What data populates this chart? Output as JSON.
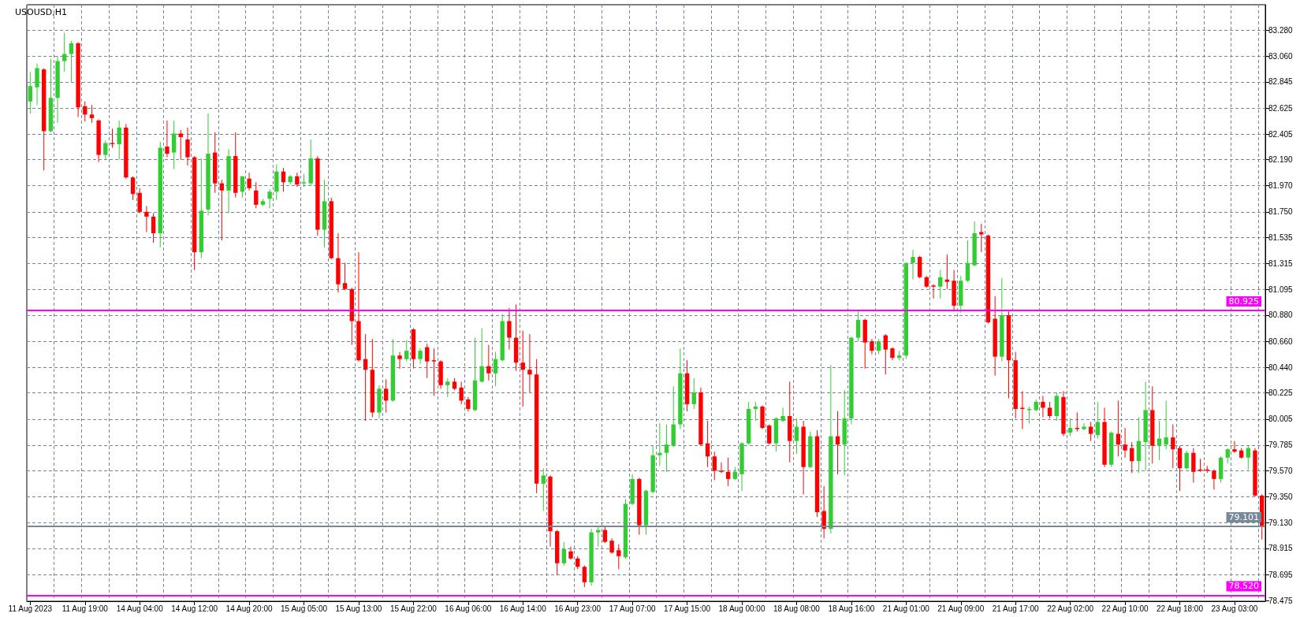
{
  "chart_data": {
    "type": "candlestick",
    "title": "USOUSD,H1",
    "categories": [
      "11 Aug 2023",
      null,
      null,
      null,
      null,
      null,
      null,
      null,
      "11 Aug 19:00",
      null,
      null,
      null,
      null,
      null,
      null,
      null,
      "14 Aug 04:00",
      null,
      null,
      null,
      null,
      null,
      null,
      null,
      "14 Aug 12:00",
      null,
      null,
      null,
      null,
      null,
      null,
      null,
      "14 Aug 20:00",
      null,
      null,
      null,
      null,
      null,
      null,
      null,
      "15 Aug 05:00",
      null,
      null,
      null,
      null,
      null,
      null,
      null,
      "15 Aug 13:00",
      null,
      null,
      null,
      null,
      null,
      null,
      null,
      "15 Aug 22:00",
      null,
      null,
      null,
      null,
      null,
      null,
      null,
      "16 Aug 06:00",
      null,
      null,
      null,
      null,
      null,
      null,
      null,
      "16 Aug 14:00",
      null,
      null,
      null,
      null,
      null,
      null,
      null,
      "16 Aug 23:00",
      null,
      null,
      null,
      null,
      null,
      null,
      null,
      "17 Aug 07:00",
      null,
      null,
      null,
      null,
      null,
      null,
      null,
      "17 Aug 15:00",
      null,
      null,
      null,
      null,
      null,
      null,
      null,
      "18 Aug 00:00",
      null,
      null,
      null,
      null,
      null,
      null,
      null,
      "18 Aug 08:00",
      null,
      null,
      null,
      null,
      null,
      null,
      null,
      "18 Aug 16:00",
      null,
      null,
      null,
      null,
      null,
      null,
      null,
      "21 Aug 01:00",
      null,
      null,
      null,
      null,
      null,
      null,
      null,
      "21 Aug 09:00",
      null,
      null,
      null,
      null,
      null,
      null,
      null,
      "21 Aug 17:00",
      null,
      null,
      null,
      null,
      null,
      null,
      null,
      "22 Aug 02:00",
      null,
      null,
      null,
      null,
      null,
      null,
      null,
      "22 Aug 10:00",
      null,
      null,
      null,
      null,
      null,
      null,
      null,
      "22 Aug 18:00",
      null,
      null,
      null,
      null,
      null,
      null,
      null,
      "23 Aug 03:00",
      null,
      null,
      null,
      null
    ],
    "ohlc": [
      [
        82.68,
        82.93,
        82.58,
        82.81
      ],
      [
        82.8,
        83.0,
        82.65,
        82.96
      ],
      [
        82.95,
        82.96,
        82.1,
        82.43
      ],
      [
        82.43,
        83.04,
        82.42,
        82.71
      ],
      [
        82.71,
        83.06,
        82.5,
        83.02
      ],
      [
        83.02,
        83.26,
        82.93,
        83.08
      ],
      [
        83.08,
        83.19,
        82.84,
        83.17
      ],
      [
        83.17,
        83.18,
        82.55,
        82.63
      ],
      [
        82.64,
        82.68,
        82.51,
        82.57
      ],
      [
        82.57,
        82.65,
        82.5,
        82.54
      ],
      [
        82.52,
        82.53,
        82.17,
        82.23
      ],
      [
        82.23,
        82.35,
        82.19,
        82.33
      ],
      [
        82.33,
        82.45,
        82.29,
        82.32
      ],
      [
        82.32,
        82.52,
        82.19,
        82.46
      ],
      [
        82.46,
        82.49,
        82.03,
        82.04
      ],
      [
        82.04,
        82.05,
        81.85,
        81.9
      ],
      [
        81.91,
        81.95,
        81.74,
        81.75
      ],
      [
        81.75,
        81.8,
        81.58,
        81.71
      ],
      [
        81.71,
        81.74,
        81.49,
        81.57
      ],
      [
        81.57,
        82.34,
        81.45,
        82.29
      ],
      [
        82.3,
        82.52,
        82.21,
        82.24
      ],
      [
        82.25,
        82.52,
        82.11,
        82.41
      ],
      [
        82.41,
        82.44,
        82.19,
        82.38
      ],
      [
        82.36,
        82.46,
        82.14,
        82.21
      ],
      [
        82.21,
        82.22,
        81.26,
        81.41
      ],
      [
        81.41,
        82.2,
        81.36,
        81.76
      ],
      [
        81.77,
        82.58,
        81.72,
        82.24
      ],
      [
        82.25,
        82.42,
        81.91,
        81.99
      ],
      [
        81.99,
        82.02,
        81.51,
        81.93
      ],
      [
        81.93,
        82.28,
        81.74,
        82.22
      ],
      [
        82.22,
        82.42,
        81.87,
        81.91
      ],
      [
        81.92,
        82.05,
        81.87,
        82.05
      ],
      [
        82.03,
        82.08,
        81.93,
        81.95
      ],
      [
        81.93,
        82.0,
        81.78,
        81.81
      ],
      [
        81.81,
        81.86,
        81.8,
        81.84
      ],
      [
        81.86,
        81.94,
        81.78,
        81.92
      ],
      [
        81.92,
        82.15,
        81.85,
        82.09
      ],
      [
        82.09,
        82.12,
        81.92,
        82.0
      ],
      [
        82.0,
        82.06,
        81.98,
        82.05
      ],
      [
        82.05,
        82.08,
        81.96,
        81.98
      ],
      [
        81.99,
        82.07,
        81.96,
        82.0
      ],
      [
        81.99,
        82.36,
        81.97,
        82.2
      ],
      [
        82.2,
        82.22,
        81.55,
        81.6
      ],
      [
        81.6,
        82.02,
        81.45,
        81.84
      ],
      [
        81.84,
        81.87,
        81.35,
        81.36
      ],
      [
        81.36,
        81.57,
        81.07,
        81.14
      ],
      [
        81.15,
        81.32,
        81.09,
        81.1
      ],
      [
        81.1,
        81.11,
        80.63,
        80.83
      ],
      [
        80.83,
        81.41,
        80.49,
        80.5
      ],
      [
        80.51,
        80.72,
        79.99,
        80.42
      ],
      [
        80.42,
        80.68,
        80.02,
        80.06
      ],
      [
        80.06,
        80.29,
        80.01,
        80.26
      ],
      [
        80.26,
        80.34,
        80.06,
        80.16
      ],
      [
        80.16,
        80.68,
        80.15,
        80.54
      ],
      [
        80.54,
        80.57,
        80.43,
        80.51
      ],
      [
        80.51,
        80.67,
        80.49,
        80.58
      ],
      [
        80.76,
        80.77,
        80.43,
        80.51
      ],
      [
        80.51,
        80.6,
        80.47,
        80.58
      ],
      [
        80.61,
        80.64,
        80.35,
        80.49
      ],
      [
        80.5,
        80.6,
        80.2,
        80.49
      ],
      [
        80.49,
        80.5,
        80.26,
        80.29
      ],
      [
        80.29,
        80.35,
        80.19,
        80.32
      ],
      [
        80.32,
        80.35,
        80.25,
        80.26
      ],
      [
        80.27,
        80.32,
        80.13,
        80.16
      ],
      [
        80.17,
        80.19,
        80.07,
        80.09
      ],
      [
        80.08,
        80.69,
        80.07,
        80.33
      ],
      [
        80.32,
        80.77,
        80.31,
        80.45
      ],
      [
        80.45,
        80.63,
        80.33,
        80.39
      ],
      [
        80.39,
        80.57,
        80.28,
        80.51
      ],
      [
        80.5,
        80.89,
        80.49,
        80.83
      ],
      [
        80.83,
        80.94,
        80.59,
        80.69
      ],
      [
        80.69,
        80.97,
        80.41,
        80.48
      ],
      [
        80.48,
        80.75,
        80.11,
        80.42
      ],
      [
        80.42,
        80.72,
        80.23,
        80.38
      ],
      [
        80.38,
        80.51,
        79.38,
        79.46
      ],
      [
        79.46,
        79.59,
        79.23,
        79.53
      ],
      [
        79.52,
        79.53,
        78.93,
        79.06
      ],
      [
        79.06,
        79.07,
        78.69,
        78.79
      ],
      [
        78.79,
        78.97,
        78.77,
        78.91
      ],
      [
        78.89,
        78.93,
        78.82,
        78.83
      ],
      [
        78.83,
        78.85,
        78.74,
        78.76
      ],
      [
        78.76,
        78.77,
        78.59,
        78.63
      ],
      [
        78.63,
        79.08,
        78.6,
        79.05
      ],
      [
        79.05,
        79.1,
        78.93,
        79.07
      ],
      [
        79.07,
        79.1,
        78.96,
        78.97
      ],
      [
        78.98,
        79.0,
        78.87,
        78.88
      ],
      [
        78.9,
        78.95,
        78.74,
        78.85
      ],
      [
        78.84,
        79.33,
        78.83,
        79.29
      ],
      [
        79.29,
        79.54,
        79.28,
        79.5
      ],
      [
        79.5,
        79.51,
        79.03,
        79.11
      ],
      [
        79.11,
        79.41,
        79.03,
        79.4
      ],
      [
        79.39,
        79.78,
        79.38,
        79.7
      ],
      [
        79.7,
        79.97,
        79.61,
        79.72
      ],
      [
        79.72,
        79.96,
        79.56,
        79.79
      ],
      [
        79.78,
        80.28,
        79.77,
        79.96
      ],
      [
        79.96,
        80.6,
        79.92,
        80.39
      ],
      [
        80.39,
        80.5,
        80.07,
        80.13
      ],
      [
        80.13,
        80.35,
        80.09,
        80.23
      ],
      [
        80.23,
        80.27,
        79.78,
        79.79
      ],
      [
        79.8,
        79.99,
        79.6,
        79.69
      ],
      [
        79.69,
        79.73,
        79.49,
        79.57
      ],
      [
        79.57,
        79.64,
        79.55,
        79.56
      ],
      [
        79.56,
        79.68,
        79.44,
        79.5
      ],
      [
        79.5,
        79.6,
        79.49,
        79.56
      ],
      [
        79.54,
        79.81,
        79.4,
        79.8
      ],
      [
        79.8,
        80.15,
        79.79,
        80.09
      ],
      [
        80.09,
        80.15,
        79.99,
        80.11
      ],
      [
        80.11,
        80.12,
        79.92,
        79.93
      ],
      [
        79.95,
        79.96,
        79.79,
        79.8
      ],
      [
        79.8,
        80.02,
        79.73,
        80.01
      ],
      [
        79.99,
        80.1,
        79.98,
        80.03
      ],
      [
        80.03,
        80.32,
        79.64,
        79.82
      ],
      [
        79.82,
        80.01,
        79.71,
        79.94
      ],
      [
        79.94,
        79.99,
        79.37,
        79.6
      ],
      [
        79.6,
        79.9,
        79.59,
        79.86
      ],
      [
        79.86,
        79.91,
        79.18,
        79.22
      ],
      [
        79.23,
        79.44,
        79.0,
        79.08
      ],
      [
        79.08,
        80.46,
        79.04,
        79.86
      ],
      [
        79.86,
        80.07,
        79.54,
        79.79
      ],
      [
        79.79,
        80.25,
        79.53,
        80.01
      ],
      [
        80.01,
        80.7,
        79.96,
        80.69
      ],
      [
        80.69,
        80.92,
        80.66,
        80.84
      ],
      [
        80.84,
        80.85,
        80.43,
        80.65
      ],
      [
        80.66,
        80.68,
        80.55,
        80.58
      ],
      [
        80.58,
        80.68,
        80.55,
        80.66
      ],
      [
        80.71,
        80.72,
        80.38,
        80.59
      ],
      [
        80.6,
        80.61,
        80.5,
        80.52
      ],
      [
        80.52,
        80.58,
        80.5,
        80.54
      ],
      [
        80.54,
        81.32,
        80.51,
        81.32
      ],
      [
        81.32,
        81.43,
        81.18,
        81.37
      ],
      [
        81.37,
        81.38,
        81.19,
        81.2
      ],
      [
        81.2,
        81.21,
        81.11,
        81.12
      ],
      [
        81.13,
        81.14,
        81.02,
        81.12
      ],
      [
        81.12,
        81.26,
        81.02,
        81.2
      ],
      [
        81.18,
        81.39,
        81.1,
        81.16
      ],
      [
        81.17,
        81.26,
        80.91,
        80.96
      ],
      [
        80.96,
        81.21,
        80.9,
        81.17
      ],
      [
        81.17,
        81.51,
        81.16,
        81.32
      ],
      [
        81.3,
        81.67,
        81.29,
        81.57
      ],
      [
        81.58,
        81.65,
        81.41,
        81.56
      ],
      [
        81.55,
        81.56,
        80.81,
        80.82
      ],
      [
        80.85,
        81.04,
        80.37,
        80.53
      ],
      [
        80.53,
        81.19,
        80.49,
        80.88
      ],
      [
        80.88,
        80.91,
        80.18,
        80.5
      ],
      [
        80.5,
        80.57,
        80.01,
        80.09
      ],
      [
        80.1,
        80.24,
        79.92,
        80.09
      ],
      [
        80.08,
        80.11,
        79.97,
        80.09
      ],
      [
        80.08,
        80.17,
        80.07,
        80.15
      ],
      [
        80.15,
        80.2,
        80.02,
        80.1
      ],
      [
        80.1,
        80.15,
        80.01,
        80.03
      ],
      [
        80.03,
        80.23,
        79.99,
        80.2
      ],
      [
        80.19,
        80.24,
        79.86,
        79.88
      ],
      [
        79.89,
        80.01,
        79.86,
        79.93
      ],
      [
        79.93,
        80.06,
        79.9,
        79.92
      ],
      [
        79.92,
        79.97,
        79.91,
        79.94
      ],
      [
        79.94,
        79.98,
        79.82,
        79.88
      ],
      [
        79.87,
        80.15,
        79.84,
        79.98
      ],
      [
        79.98,
        80.1,
        79.6,
        79.62
      ],
      [
        79.62,
        79.9,
        79.6,
        79.89
      ],
      [
        79.88,
        80.16,
        79.69,
        79.79
      ],
      [
        79.79,
        79.93,
        79.68,
        79.74
      ],
      [
        79.76,
        79.81,
        79.55,
        79.65
      ],
      [
        79.65,
        80.02,
        79.55,
        79.82
      ],
      [
        79.81,
        80.32,
        79.57,
        80.08
      ],
      [
        80.08,
        80.28,
        79.63,
        79.78
      ],
      [
        79.78,
        79.99,
        79.66,
        79.84
      ],
      [
        79.79,
        80.16,
        79.75,
        79.85
      ],
      [
        79.85,
        79.96,
        79.59,
        79.75
      ],
      [
        79.76,
        79.78,
        79.4,
        79.59
      ],
      [
        79.59,
        79.74,
        79.58,
        79.72
      ],
      [
        79.72,
        79.76,
        79.47,
        79.56
      ],
      [
        79.58,
        79.67,
        79.56,
        79.57
      ],
      [
        79.58,
        79.61,
        79.55,
        79.57
      ],
      [
        79.57,
        79.58,
        79.41,
        79.5
      ],
      [
        79.5,
        79.69,
        79.47,
        79.68
      ],
      [
        79.68,
        79.76,
        79.63,
        79.75
      ],
      [
        79.75,
        79.82,
        79.72,
        79.73
      ],
      [
        79.74,
        79.76,
        79.67,
        79.68
      ],
      [
        79.68,
        79.78,
        79.58,
        79.76
      ],
      [
        79.74,
        79.76,
        79.35,
        79.36
      ],
      [
        79.36,
        79.37,
        78.99,
        79.1
      ]
    ],
    "colors": [
      "#32cd32",
      "#32cd32",
      "#ff0000",
      "#32cd32",
      "#32cd32",
      "#32cd32",
      "#32cd32",
      "#ff0000",
      "#ff0000",
      "#ff0000",
      "#ff0000",
      "#32cd32",
      "#ff0000",
      "#32cd32",
      "#ff0000",
      "#ff0000",
      "#ff0000",
      "#ff0000",
      "#ff0000",
      "#32cd32",
      "#ff0000",
      "#32cd32",
      "#ff0000",
      "#ff0000",
      "#ff0000",
      "#32cd32",
      "#32cd32",
      "#ff0000",
      "#ff0000",
      "#32cd32",
      "#ff0000",
      "#32cd32",
      "#ff0000",
      "#ff0000",
      "#32cd32",
      "#32cd32",
      "#32cd32",
      "#ff0000",
      "#32cd32",
      "#ff0000",
      "#32cd32",
      "#32cd32",
      "#ff0000",
      "#32cd32",
      "#ff0000",
      "#ff0000",
      "#ff0000",
      "#ff0000",
      "#ff0000",
      "#ff0000",
      "#ff0000",
      "#32cd32",
      "#ff0000",
      "#32cd32",
      "#ff0000",
      "#32cd32",
      "#ff0000",
      "#32cd32",
      "#ff0000",
      "#ff0000",
      "#ff0000",
      "#32cd32",
      "#ff0000",
      "#ff0000",
      "#ff0000",
      "#32cd32",
      "#32cd32",
      "#ff0000",
      "#32cd32",
      "#32cd32",
      "#ff0000",
      "#ff0000",
      "#ff0000",
      "#ff0000",
      "#ff0000",
      "#32cd32",
      "#ff0000",
      "#ff0000",
      "#32cd32",
      "#ff0000",
      "#ff0000",
      "#ff0000",
      "#32cd32",
      "#32cd32",
      "#ff0000",
      "#ff0000",
      "#ff0000",
      "#32cd32",
      "#32cd32",
      "#ff0000",
      "#32cd32",
      "#32cd32",
      "#32cd32",
      "#32cd32",
      "#32cd32",
      "#32cd32",
      "#ff0000",
      "#32cd32",
      "#ff0000",
      "#ff0000",
      "#ff0000",
      "#ff0000",
      "#ff0000",
      "#32cd32",
      "#32cd32",
      "#32cd32",
      "#32cd32",
      "#ff0000",
      "#ff0000",
      "#32cd32",
      "#32cd32",
      "#ff0000",
      "#32cd32",
      "#ff0000",
      "#32cd32",
      "#ff0000",
      "#ff0000",
      "#32cd32",
      "#ff0000",
      "#32cd32",
      "#32cd32",
      "#32cd32",
      "#ff0000",
      "#ff0000",
      "#32cd32",
      "#ff0000",
      "#ff0000",
      "#32cd32",
      "#32cd32",
      "#32cd32",
      "#ff0000",
      "#ff0000",
      "#ff0000",
      "#32cd32",
      "#ff0000",
      "#ff0000",
      "#32cd32",
      "#32cd32",
      "#32cd32",
      "#ff0000",
      "#ff0000",
      "#ff0000",
      "#32cd32",
      "#ff0000",
      "#ff0000",
      "#ff0000",
      "#32cd32",
      "#32cd32",
      "#ff0000",
      "#ff0000",
      "#32cd32",
      "#ff0000",
      "#32cd32",
      "#ff0000",
      "#32cd32",
      "#ff0000",
      "#32cd32",
      "#ff0000",
      "#32cd32",
      "#ff0000",
      "#ff0000",
      "#ff0000",
      "#32cd32",
      "#32cd32",
      "#ff0000",
      "#32cd32",
      "#32cd32",
      "#ff0000",
      "#ff0000",
      "#32cd32",
      "#ff0000",
      "#ff0000",
      "#ff0000",
      "#ff0000",
      "#32cd32",
      "#32cd32",
      "#ff0000",
      "#ff0000",
      "#32cd32",
      "#ff0000",
      "#ff0000"
    ],
    "ylim": [
      78.47,
      83.495
    ],
    "yticks": [
      {
        "value": 83.28,
        "label": "83.280"
      },
      {
        "value": 83.06,
        "label": "83.060"
      },
      {
        "value": 82.845,
        "label": "82.845"
      },
      {
        "value": 82.625,
        "label": "82.625"
      },
      {
        "value": 82.405,
        "label": "82.405"
      },
      {
        "value": 82.19,
        "label": "82.190"
      },
      {
        "value": 81.97,
        "label": "81.970"
      },
      {
        "value": 81.75,
        "label": "81.750"
      },
      {
        "value": 81.535,
        "label": "81.535"
      },
      {
        "value": 81.315,
        "label": "81.315"
      },
      {
        "value": 81.095,
        "label": "81.095"
      },
      {
        "value": 80.88,
        "label": "80.880"
      },
      {
        "value": 80.66,
        "label": "80.660"
      },
      {
        "value": 80.44,
        "label": "80.440"
      },
      {
        "value": 80.225,
        "label": "80.225"
      },
      {
        "value": 80.005,
        "label": "80.005"
      },
      {
        "value": 79.785,
        "label": "79.785"
      },
      {
        "value": 79.57,
        "label": "79.570"
      },
      {
        "value": 79.35,
        "label": "79.350"
      },
      {
        "value": 79.13,
        "label": "79.130"
      },
      {
        "value": 78.915,
        "label": "78.915"
      },
      {
        "value": 78.695,
        "label": "78.695"
      },
      {
        "value": 78.475,
        "label": "78.475"
      }
    ],
    "ref_lines": [
      {
        "axis": "y",
        "value": 80.925,
        "label": "80.925",
        "color": "#ff00ff"
      },
      {
        "axis": "y",
        "value": 79.101,
        "label": "79.101",
        "color": "#778899"
      },
      {
        "axis": "y",
        "value": 78.52,
        "label": "78.520",
        "color": "#ff00ff"
      }
    ],
    "grid": true
  }
}
